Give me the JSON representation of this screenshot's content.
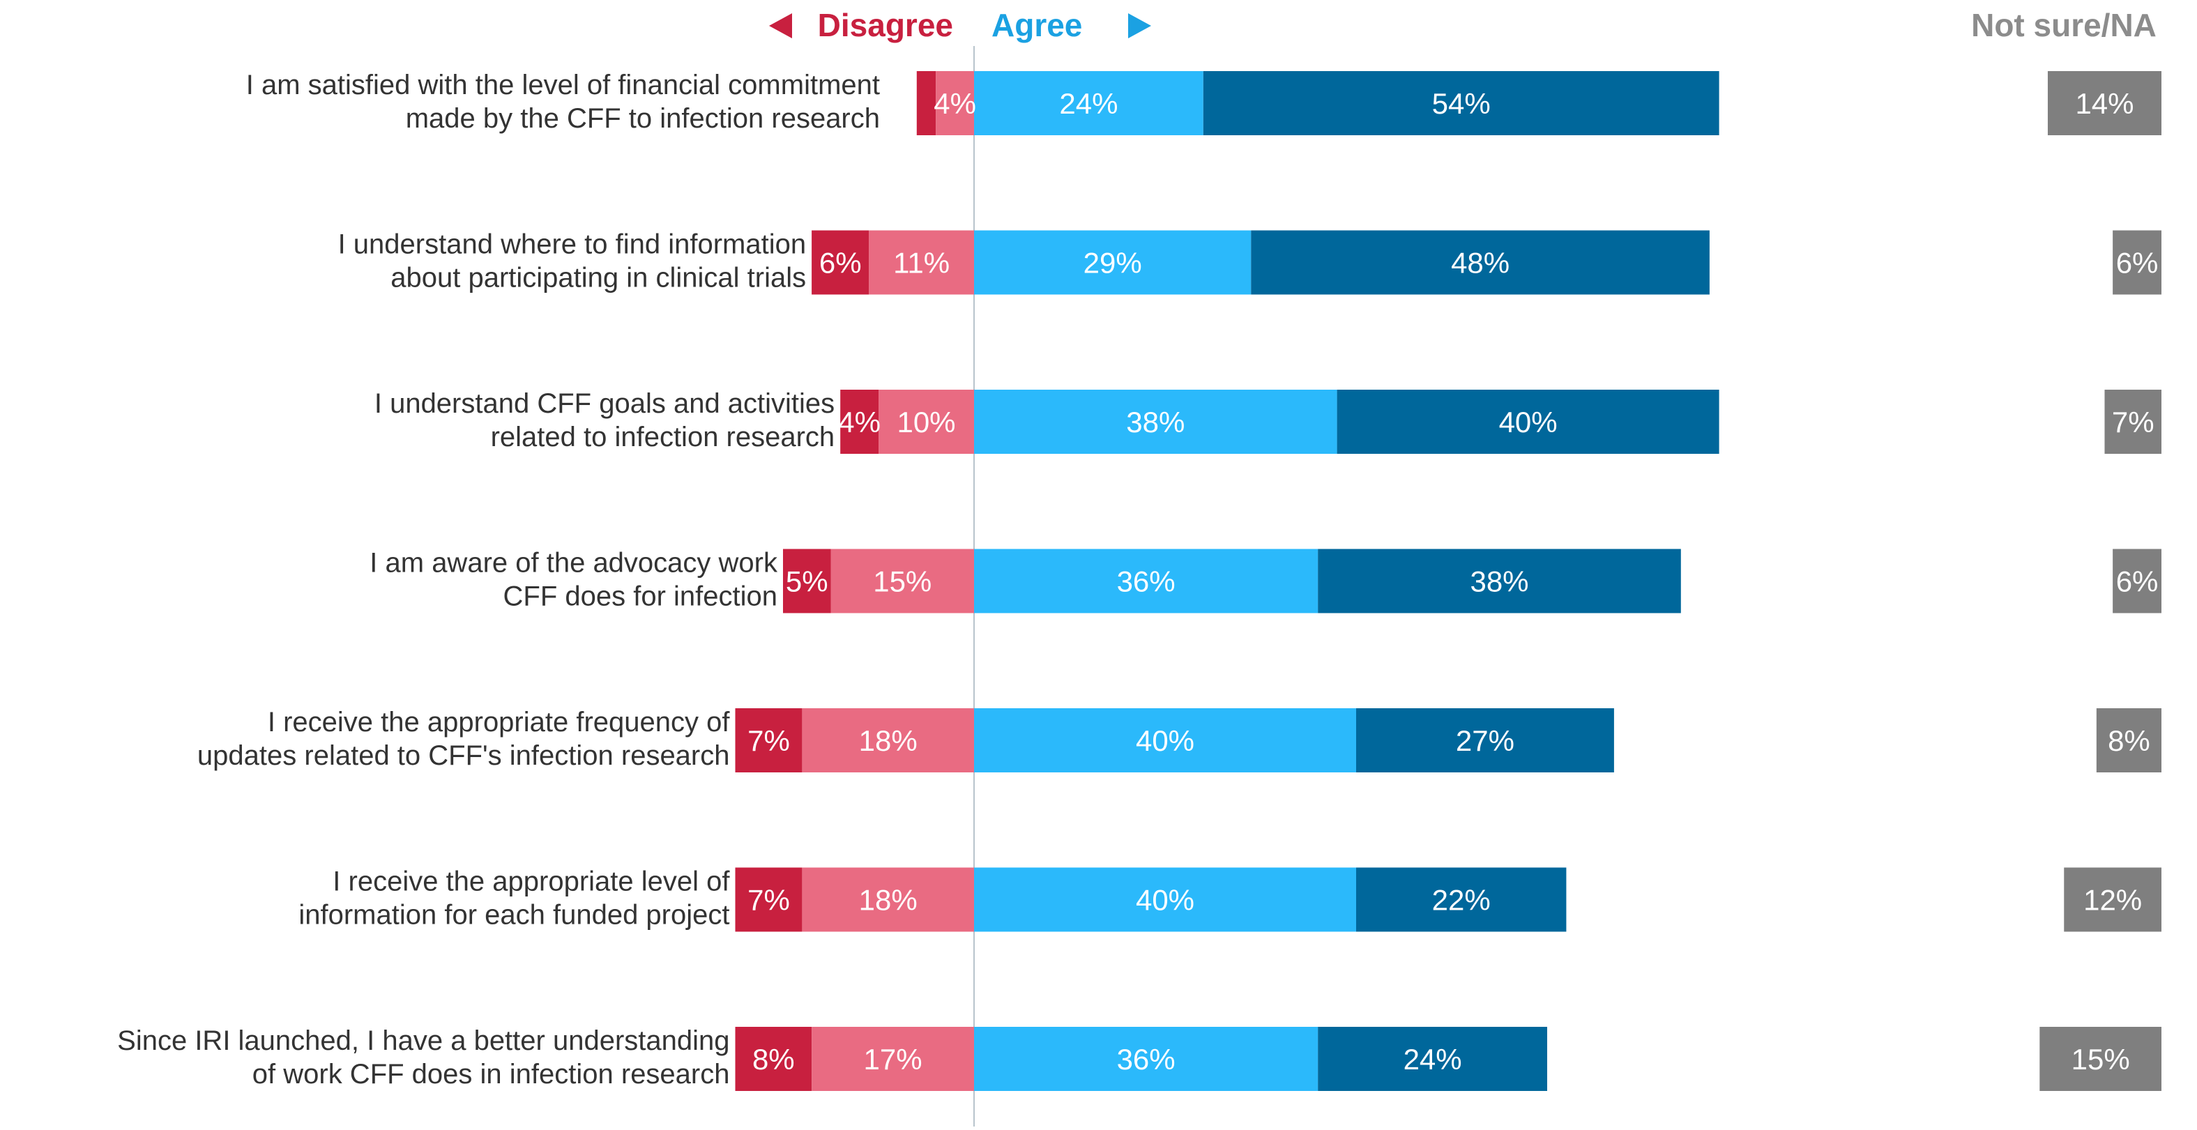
{
  "colors": {
    "strongly_disagree": "#c8203f",
    "disagree": "#e96b82",
    "agree": "#2bb9fb",
    "strongly_agree": "#00679b",
    "not_sure": "#7f7f7f",
    "disagree_header": "#c8203f",
    "agree_header": "#1ba1e2",
    "not_sure_header": "#8c8c8c",
    "divider": "#b8c4cc"
  },
  "chart_data": {
    "type": "bar",
    "orientation": "horizontal",
    "layout": "diverging-stacked",
    "headers": {
      "disagree": "Disagree",
      "agree": "Agree",
      "not_sure": "Not sure/NA"
    },
    "categories": [
      "I am satisfied with the level of financial commitment made by the CFF to infection research",
      "I understand where to find information about participating in clinical trials",
      "I understand CFF goals and activities related to infection research",
      "I am aware of the advocacy work CFF does for infection",
      "I receive the appropriate frequency of updates related to CFF's infection research",
      "I receive the appropriate level of information for each funded project",
      "Since IRI launched, I have a better understanding of work CFF does in infection research"
    ],
    "category_lines": [
      [
        "I am satisfied with the level of financial commitment",
        "made by the CFF to infection research"
      ],
      [
        "I understand where to find information",
        "about participating in clinical trials"
      ],
      [
        "I understand CFF goals and activities",
        "related to infection research"
      ],
      [
        "I am aware of the advocacy work",
        "CFF does for infection"
      ],
      [
        "I receive the appropriate frequency of",
        "updates related to CFF's infection research"
      ],
      [
        "I receive the appropriate level of",
        "information for each funded project"
      ],
      [
        "Since IRI launched, I have a better understanding",
        "of work CFF does in infection research"
      ]
    ],
    "series": [
      {
        "key": "strongly_disagree",
        "side": "left",
        "values": [
          2,
          6,
          4,
          5,
          7,
          7,
          8
        ],
        "labels": [
          "",
          "6%",
          "4%",
          "5%",
          "7%",
          "7%",
          "8%"
        ]
      },
      {
        "key": "disagree",
        "side": "left",
        "values": [
          4,
          11,
          10,
          15,
          18,
          18,
          17
        ],
        "labels": [
          "4%",
          "11%",
          "10%",
          "15%",
          "18%",
          "18%",
          "17%"
        ]
      },
      {
        "key": "agree",
        "side": "right",
        "values": [
          24,
          29,
          38,
          36,
          40,
          40,
          36
        ],
        "labels": [
          "24%",
          "29%",
          "38%",
          "36%",
          "40%",
          "40%",
          "36%"
        ]
      },
      {
        "key": "strongly_agree",
        "side": "right",
        "values": [
          54,
          48,
          40,
          38,
          27,
          22,
          24
        ],
        "labels": [
          "54%",
          "48%",
          "40%",
          "38%",
          "27%",
          "22%",
          "24%"
        ]
      },
      {
        "key": "not_sure",
        "side": "separate",
        "values": [
          14,
          6,
          7,
          6,
          8,
          12,
          15
        ],
        "labels": [
          "14%",
          "6%",
          "7%",
          "6%",
          "8%",
          "12%",
          "15%"
        ]
      }
    ]
  }
}
